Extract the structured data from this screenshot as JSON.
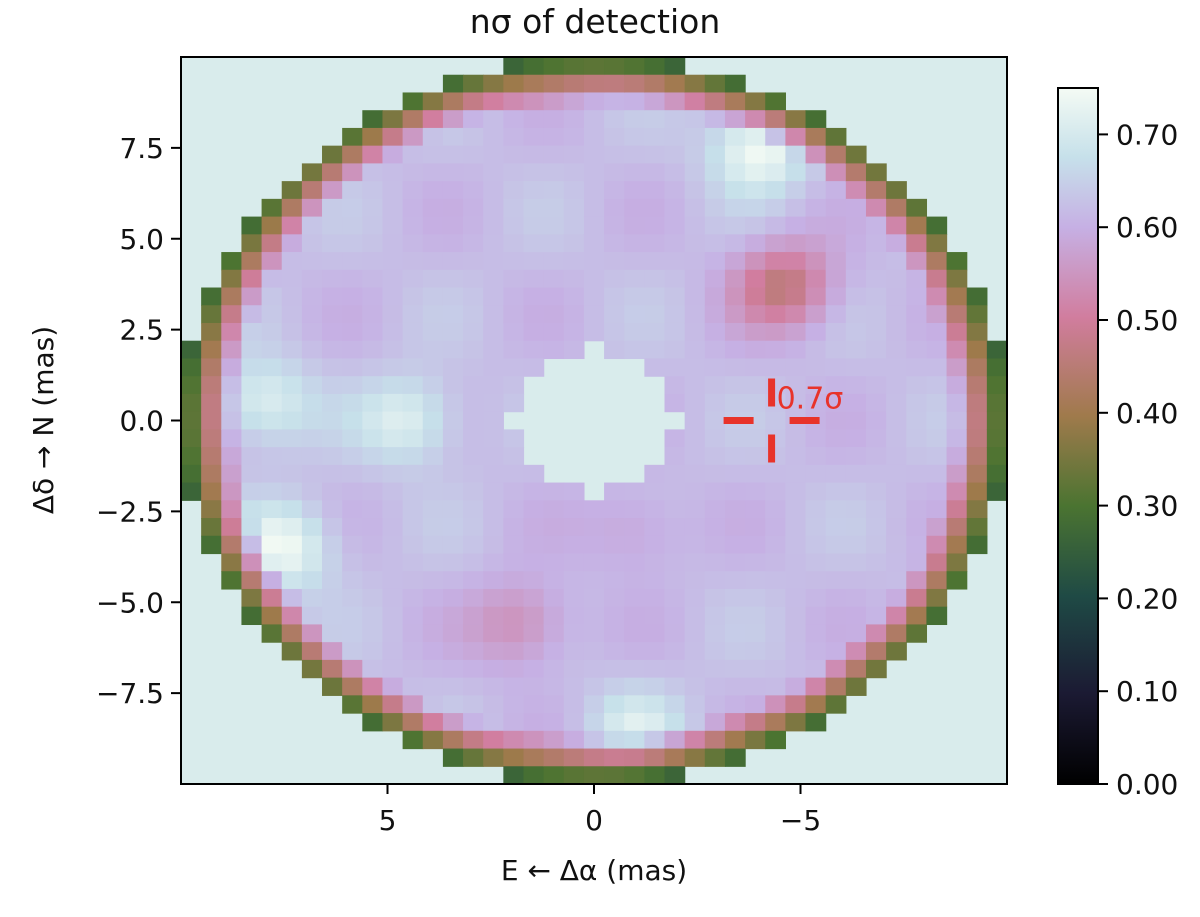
{
  "chart_data": {
    "type": "heatmap",
    "title": "nσ of detection",
    "xlabel": "E ← Δα (mas)",
    "ylabel": "Δδ → N (mas)",
    "xlim": [
      10,
      -10
    ],
    "ylim": [
      -10,
      10
    ],
    "x_ticks": [
      5,
      0,
      -5
    ],
    "x_tick_labels": [
      "5",
      "0",
      "−5"
    ],
    "y_ticks": [
      7.5,
      5.0,
      2.5,
      0.0,
      -2.5,
      -5.0,
      -7.5
    ],
    "y_tick_labels": [
      "7.5",
      "5.0",
      "2.5",
      "0.0",
      "−2.5",
      "−5.0",
      "−7.5"
    ],
    "colorbar": {
      "range": [
        0,
        0.75
      ],
      "ticks": [
        0.0,
        0.1,
        0.2,
        0.3,
        0.4,
        0.5,
        0.6,
        0.7
      ],
      "tick_labels": [
        "0.00",
        "0.10",
        "0.20",
        "0.30",
        "0.40",
        "0.50",
        "0.60",
        "0.70"
      ],
      "colormap": "cubehelix"
    },
    "mask": {
      "inner_radius_mas": 2.0,
      "outer_radius_mas": 10.0,
      "masked_color": "#d9ecec"
    },
    "base_level": 0.62,
    "edge_level": 0.25,
    "features": [
      {
        "x": -4.6,
        "y": 3.7,
        "value": 0.46
      },
      {
        "x": 1.8,
        "y": -5.6,
        "value": 0.53
      },
      {
        "x": -1.0,
        "y": -3.0,
        "value": 0.57
      },
      {
        "x": 4.5,
        "y": 0.0,
        "value": 0.72
      },
      {
        "x": 7.5,
        "y": -3.5,
        "value": 0.74
      },
      {
        "x": -4.0,
        "y": 7.5,
        "value": 0.75
      },
      {
        "x": 8.0,
        "y": 0.5,
        "value": 0.72
      },
      {
        "x": -1.0,
        "y": -8.5,
        "value": 0.7
      }
    ],
    "annotation": {
      "x": -4.3,
      "y": 0.0,
      "label": "0.7σ",
      "color": "#e8332a"
    }
  }
}
